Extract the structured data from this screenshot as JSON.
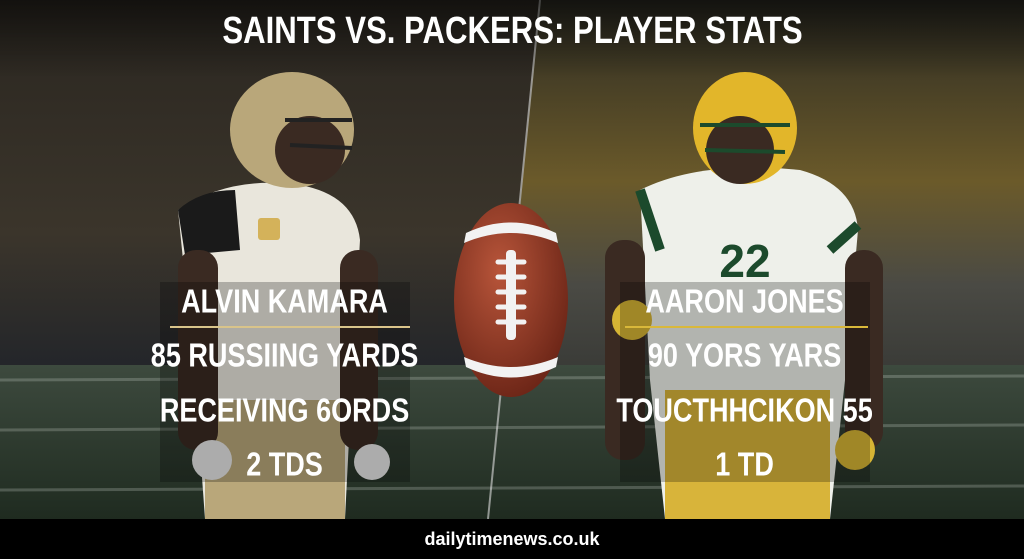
{
  "header": {
    "title": "SAINTS VS. PACKERS: PLAYER STATS"
  },
  "players": [
    {
      "name": "ALVIN KAMARA",
      "stats": [
        "85 RUSSIING YARDS",
        "RECEIVING 6ORDS",
        "2 TDS"
      ]
    },
    {
      "name": "AARON JONES",
      "stats": [
        "90 YORS YARS",
        "TOUCTHHCIKON 55",
        "1 TD"
      ],
      "jersey": "22"
    }
  ],
  "footer": {
    "source": "dailytimenews.co.uk"
  }
}
